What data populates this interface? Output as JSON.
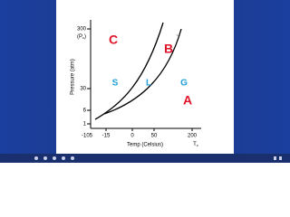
{
  "slide": {
    "y_axis": {
      "title": "Pressure (atm)",
      "ticks": [
        "300",
        "30",
        "6",
        "1"
      ],
      "critical_label": {
        "main": "(P",
        "sub": "c",
        "close": ")"
      }
    },
    "x_axis": {
      "title": "Temp (Celsius)",
      "ticks": [
        "-105",
        "-15",
        "0",
        "50",
        "200"
      ],
      "critical_label": {
        "main": "T",
        "sub": "c"
      }
    },
    "regions": {
      "C": "C",
      "B": "B",
      "S": "S",
      "L": "L",
      "G": "G",
      "A": "A"
    }
  }
}
